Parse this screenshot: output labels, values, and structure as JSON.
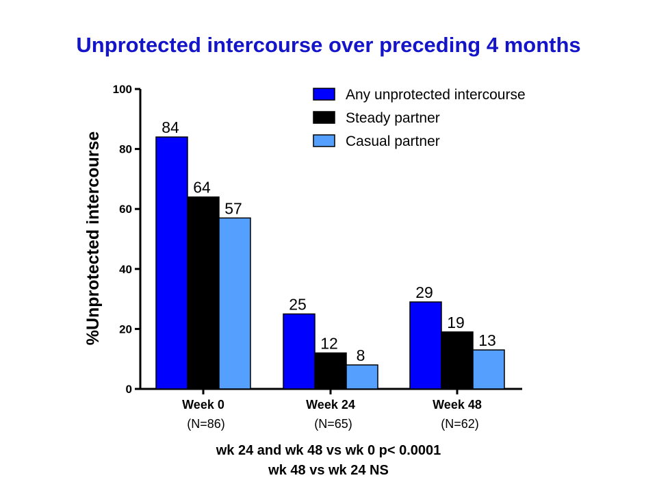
{
  "title": "Unprotected intercourse over preceding 4 months",
  "footnotes": [
    "wk 24 and wk 48 vs wk 0 p< 0.0001",
    "wk 48 vs wk 24 NS"
  ],
  "colors": {
    "title": "#1414c8",
    "any": "#0000ff",
    "steady": "#000000",
    "casual": "#55a0ff"
  },
  "chart_data": {
    "type": "bar",
    "ylabel": "%Unprotected intercourse",
    "ylim": [
      0,
      100
    ],
    "yticks": [
      0,
      20,
      40,
      60,
      80,
      100
    ],
    "categories": [
      "Week 0",
      "Week 24",
      "Week 48"
    ],
    "category_sublabels": [
      "(N=86)",
      "(N=65)",
      "(N=62)"
    ],
    "series": [
      {
        "name": "Any unprotected intercourse",
        "color": "#0000ff",
        "values": [
          84,
          25,
          29
        ]
      },
      {
        "name": "Steady partner",
        "color": "#000000",
        "values": [
          64,
          12,
          19
        ]
      },
      {
        "name": "Casual partner",
        "color": "#55a0ff",
        "values": [
          57,
          8,
          13
        ]
      }
    ],
    "data_labels": true,
    "legend": "top-right",
    "grid": false
  }
}
